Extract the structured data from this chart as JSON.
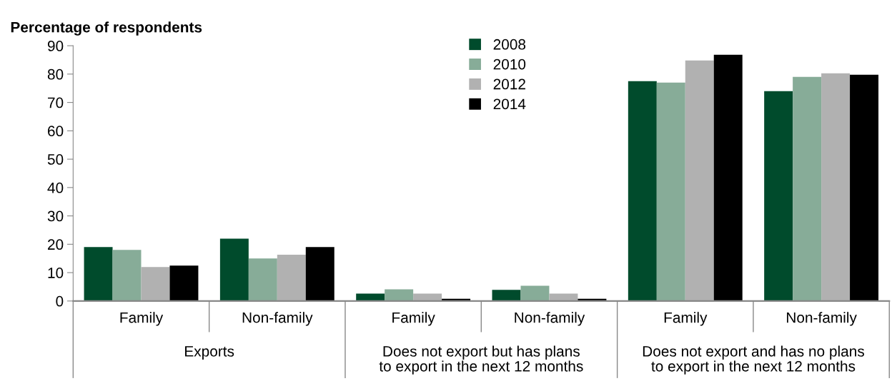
{
  "chart_data": {
    "type": "bar",
    "ylabel": "Percentage of respondents",
    "categories": [
      "Family",
      "Non-family",
      "Family",
      "Non-family",
      "Family",
      "Non-family"
    ],
    "annotations": [
      "Exports",
      "Does not export but has plans\nto export in the next 12 months",
      "Does not export and has no plans\nto export in the next 12 months"
    ],
    "series": [
      {
        "name": "2008",
        "color": "#004b2c",
        "values": [
          19,
          22,
          2.6,
          3.9,
          77.5,
          74
        ]
      },
      {
        "name": "2010",
        "color": "#87ac98",
        "values": [
          18,
          15,
          4.1,
          5.4,
          77,
          79
        ]
      },
      {
        "name": "2012",
        "color": "#b1b1b1",
        "values": [
          12,
          16.3,
          2.6,
          2.6,
          84.8,
          80.3
        ]
      },
      {
        "name": "2014",
        "color": "#000000",
        "values": [
          12.5,
          19,
          0.8,
          0.8,
          86.8,
          79.8
        ]
      }
    ],
    "ylim": [
      0,
      90
    ],
    "yticks": [
      0,
      10,
      20,
      30,
      40,
      50,
      60,
      70,
      80,
      90
    ],
    "grid": false,
    "legend": "top"
  }
}
